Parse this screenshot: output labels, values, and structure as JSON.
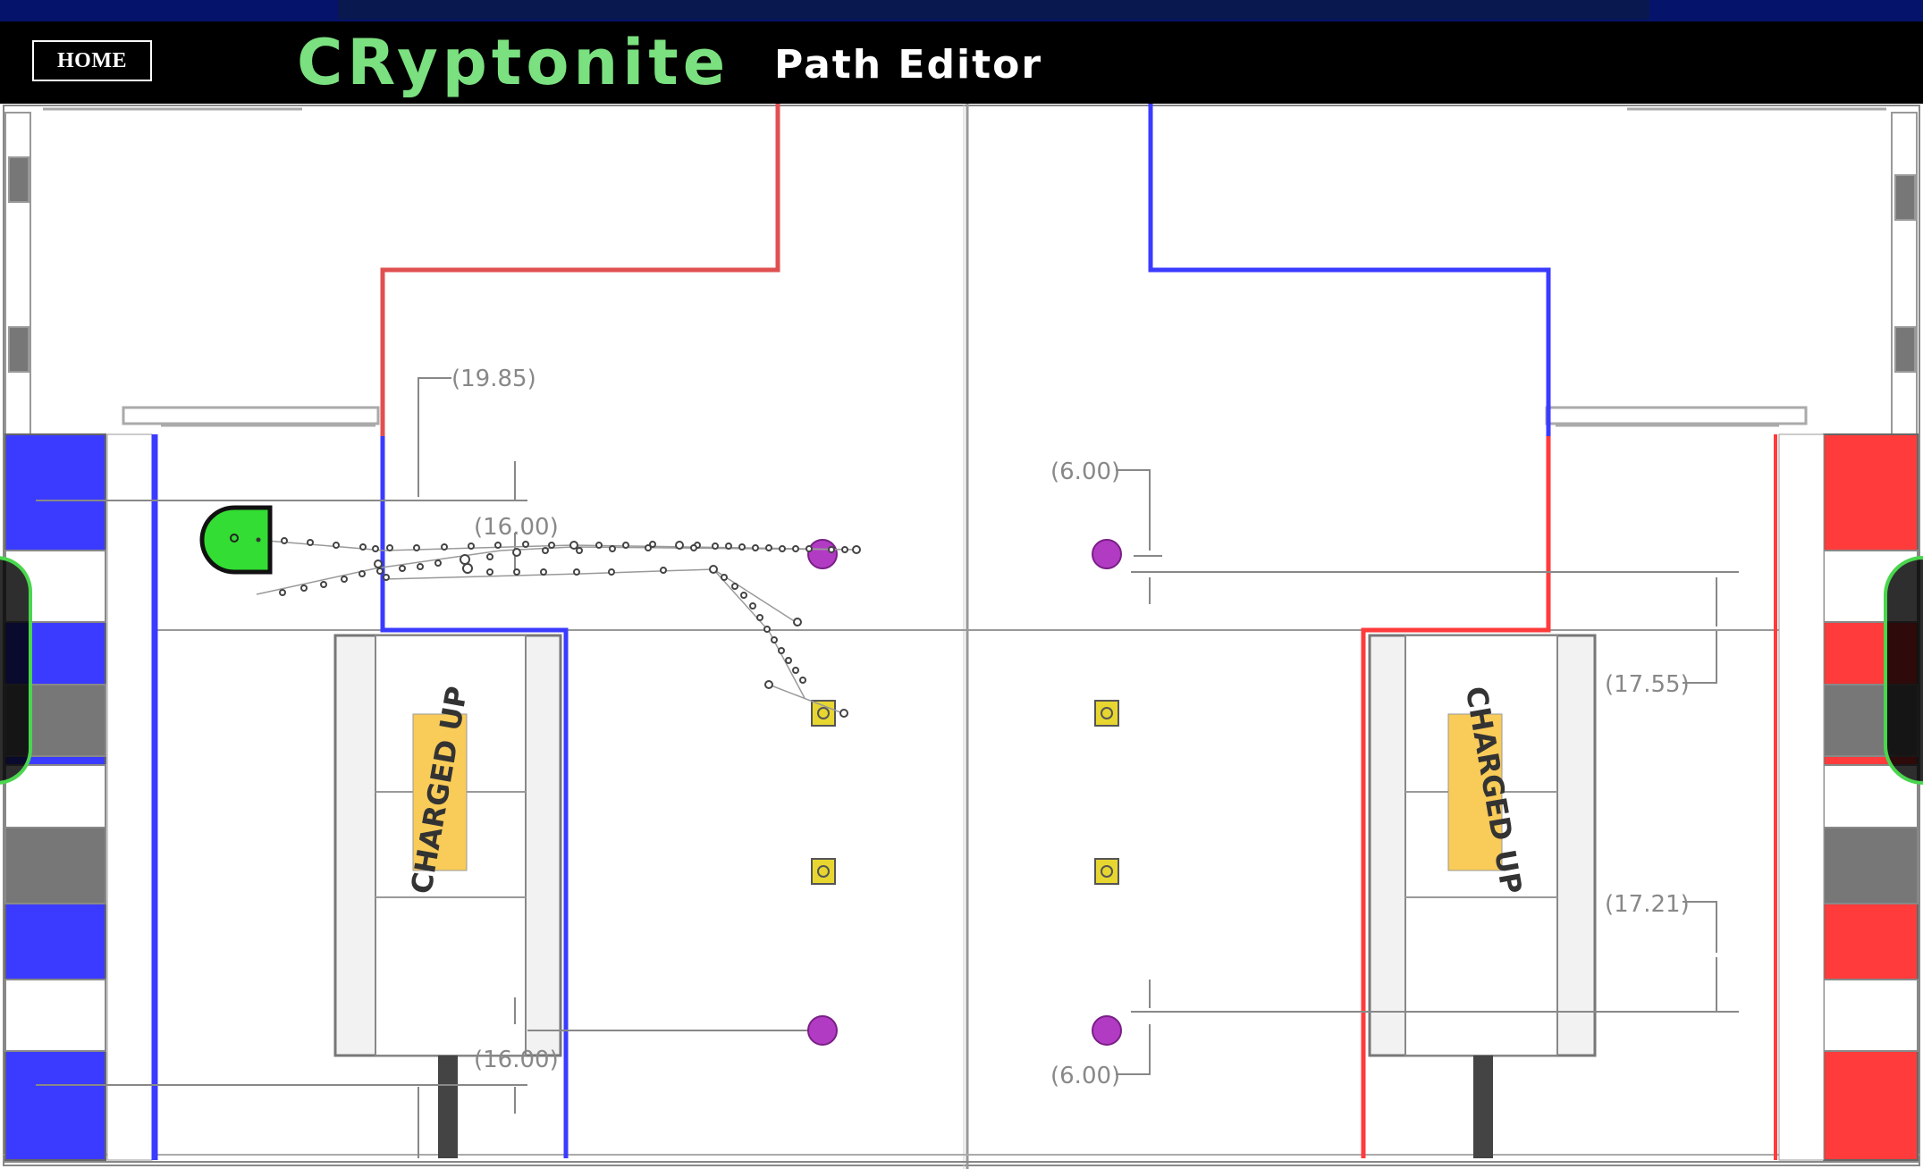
{
  "header": {
    "home_label": "HOME",
    "brand": "CRyptonite",
    "page_title": "Path Editor"
  },
  "field": {
    "dimension_labels": [
      "(19.85)",
      "(16.00)",
      "(16.00)",
      "(6.00)",
      "(6.00)",
      "(17.55)",
      "(17.21)"
    ],
    "charging_station_label": "CHARGED UP",
    "colors": {
      "blue_alliance": "#3b3bff",
      "red_alliance": "#ff3b3b",
      "robot": "#33dd33",
      "cone": "#e8d630",
      "cube": "#b23bc4",
      "path": "#444444"
    }
  },
  "robot": {
    "icon": "robot-icon"
  }
}
